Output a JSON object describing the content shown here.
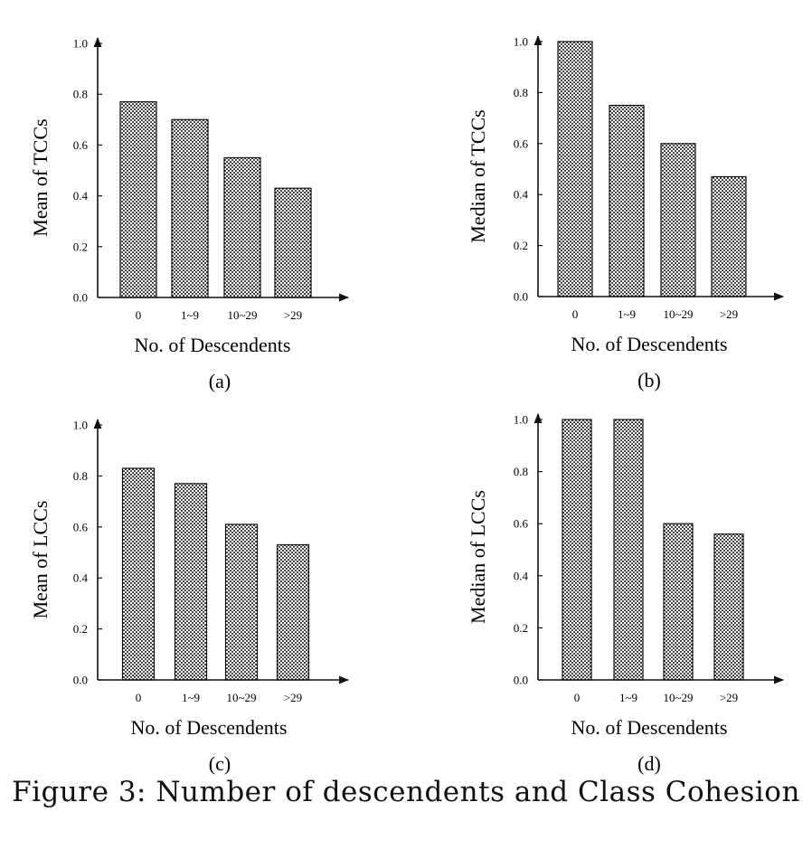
{
  "chart_data": [
    {
      "type": "bar",
      "panel_label": "(a)",
      "categories": [
        "0",
        "1~9",
        "10~29",
        ">29"
      ],
      "values": [
        0.77,
        0.7,
        0.55,
        0.43
      ],
      "xlabel": "No. of Descendents",
      "ylabel": "Mean of TCCs",
      "ylim": [
        0.0,
        1.0
      ],
      "yticks": [
        "0.0",
        "0.2",
        "0.4",
        "0.6",
        "0.8",
        "1.0"
      ],
      "grid": false,
      "bar_fill": "crosshatch"
    },
    {
      "type": "bar",
      "panel_label": "(b)",
      "categories": [
        "0",
        "1~9",
        "10~29",
        ">29"
      ],
      "values": [
        1.0,
        0.75,
        0.6,
        0.47
      ],
      "xlabel": "No. of Descendents",
      "ylabel": "Median of TCCs",
      "ylim": [
        0.0,
        1.0
      ],
      "yticks": [
        "0.0",
        "0.2",
        "0.4",
        "0.6",
        "0.8",
        "1.0"
      ],
      "grid": false,
      "bar_fill": "crosshatch"
    },
    {
      "type": "bar",
      "panel_label": "(c)",
      "categories": [
        "0",
        "1~9",
        "10~29",
        ">29"
      ],
      "values": [
        0.83,
        0.77,
        0.61,
        0.53
      ],
      "xlabel": "No. of Descendents",
      "ylabel": "Mean of LCCs",
      "ylim": [
        0.0,
        1.0
      ],
      "yticks": [
        "0.0",
        "0.2",
        "0.4",
        "0.6",
        "0.8",
        "1.0"
      ],
      "grid": false,
      "bar_fill": "crosshatch"
    },
    {
      "type": "bar",
      "panel_label": "(d)",
      "categories": [
        "0",
        "1~9",
        "10~29",
        ">29"
      ],
      "values": [
        1.0,
        1.0,
        0.6,
        0.56
      ],
      "xlabel": "No. of Descendents",
      "ylabel": "Median of LCCs",
      "ylim": [
        0.0,
        1.0
      ],
      "yticks": [
        "0.0",
        "0.2",
        "0.4",
        "0.6",
        "0.8",
        "1.0"
      ],
      "grid": false,
      "bar_fill": "crosshatch"
    }
  ],
  "caption": "Figure 3: Number of descendents and Class Cohesion",
  "colors": {
    "ink": "#111111",
    "bar_dots": "#222222",
    "background": "#ffffff"
  }
}
